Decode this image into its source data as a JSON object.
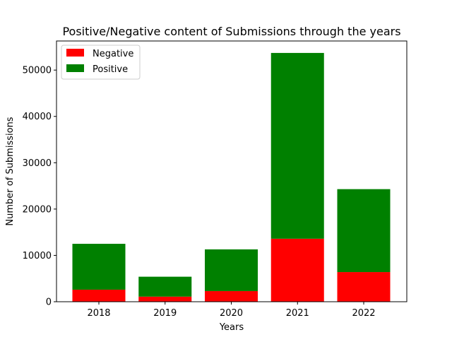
{
  "chart_data": {
    "type": "bar",
    "stacked": true,
    "title": "Positive/Negative content of Submissions through the years",
    "xlabel": "Years",
    "ylabel": "Number of Submissions",
    "categories": [
      "2018",
      "2019",
      "2020",
      "2021",
      "2022"
    ],
    "series": [
      {
        "name": "Negative",
        "color": "#ff0000",
        "values": [
          2600,
          1100,
          2300,
          13600,
          6400
        ]
      },
      {
        "name": "Positive",
        "color": "#008000",
        "values": [
          9900,
          4300,
          9000,
          40100,
          17900
        ]
      }
    ],
    "ylim": [
      0,
      56280
    ],
    "yticks": [
      0,
      10000,
      20000,
      30000,
      40000,
      50000
    ],
    "ytick_labels": [
      "0",
      "10000",
      "20000",
      "30000",
      "40000",
      "50000"
    ],
    "grid": false,
    "legend_position": "top-left"
  }
}
